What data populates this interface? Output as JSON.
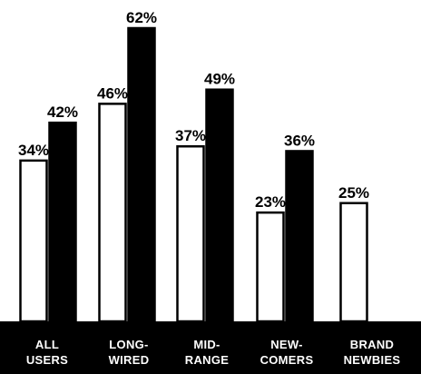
{
  "chart_data": {
    "type": "bar",
    "categories": [
      [
        "ALL",
        "USERS"
      ],
      [
        "LONG-",
        "WIRED"
      ],
      [
        "MID-",
        "RANGE"
      ],
      [
        "NEW-",
        "COMERS"
      ],
      [
        "BRAND",
        "NEWBIES"
      ]
    ],
    "series": [
      {
        "values": [
          34,
          46,
          37,
          23,
          25
        ],
        "color": "#ffffff"
      },
      {
        "values": [
          42,
          62,
          49,
          36,
          null
        ],
        "color": "#000000"
      }
    ],
    "value_labels": [
      [
        "34%",
        "46%",
        "37%",
        "23%",
        "25%"
      ],
      [
        "42%",
        "62%",
        "49%",
        "36%",
        ""
      ]
    ],
    "ylim": [
      0,
      62
    ],
    "grid": false,
    "legend": "none",
    "category_band_color": "#000000"
  }
}
